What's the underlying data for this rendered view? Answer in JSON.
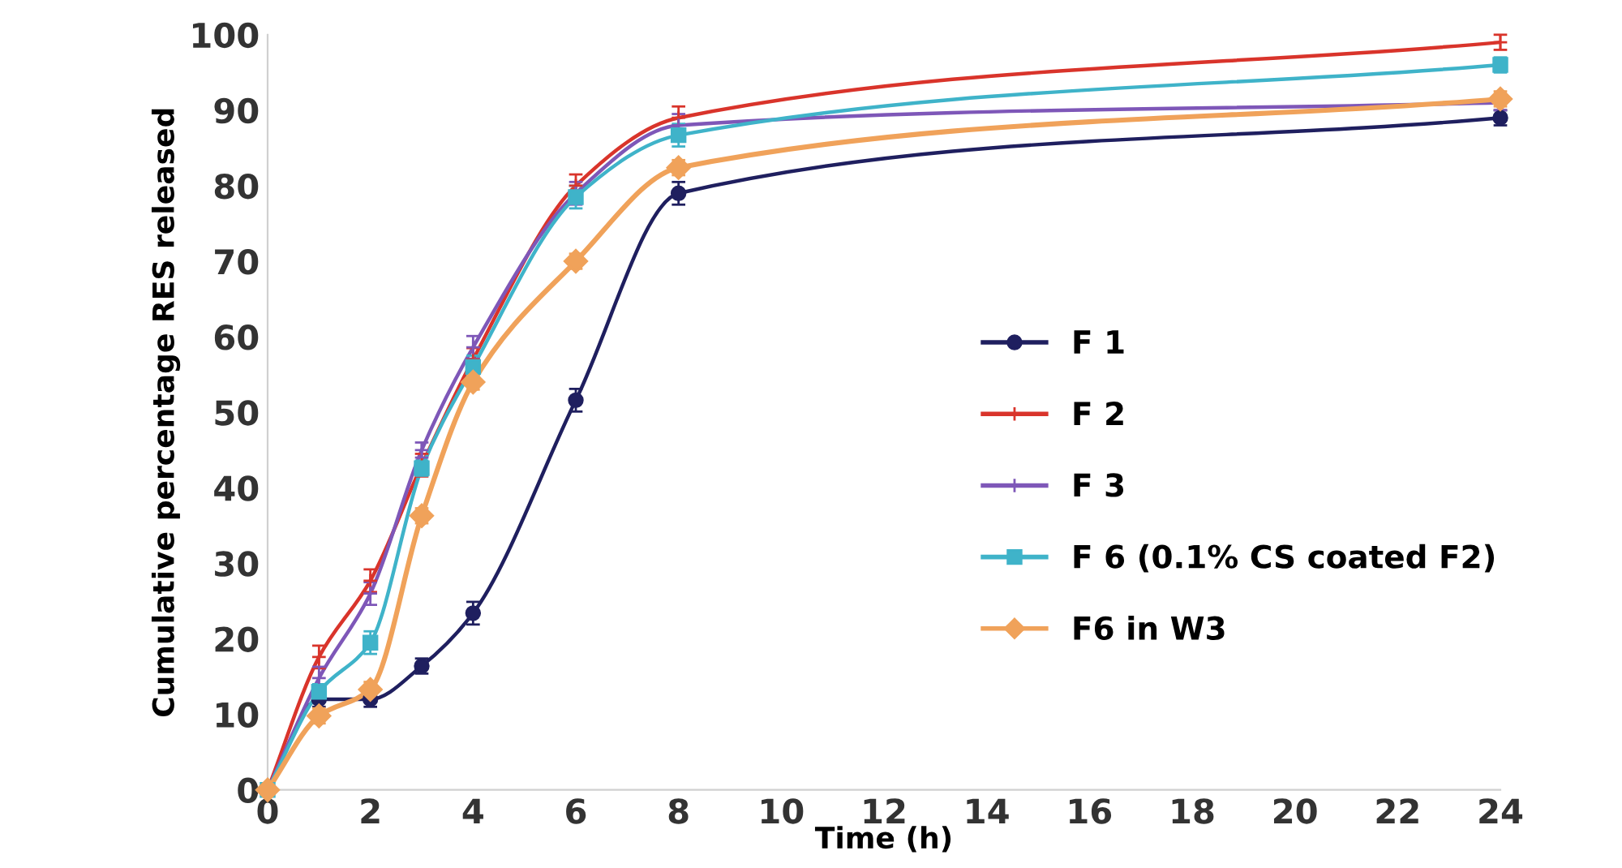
{
  "chart_data": {
    "type": "line",
    "xlabel": "Time (h)",
    "ylabel": "Cumulative percentage RES released",
    "x": [
      0,
      1,
      2,
      3,
      4,
      6,
      8,
      24
    ],
    "xlim": [
      0,
      24
    ],
    "xticks": [
      0,
      2,
      4,
      6,
      8,
      10,
      12,
      14,
      16,
      18,
      20,
      22,
      24
    ],
    "ylim": [
      0,
      100
    ],
    "yticks": [
      0,
      10,
      20,
      30,
      40,
      50,
      60,
      70,
      80,
      90,
      100
    ],
    "grid": false,
    "legend": "right",
    "line_style": "solid",
    "series": [
      {
        "name": "F 1",
        "color": "#1f1f5f",
        "marker": "circle",
        "values": [
          0,
          12,
          12,
          16.4,
          23.4,
          51.6,
          79,
          89
        ],
        "errors": [
          null,
          1,
          1,
          1,
          1.5,
          1.5,
          1.5,
          1
        ]
      },
      {
        "name": "F 2",
        "color": "#d9342b",
        "marker": "cross",
        "values": [
          0,
          17.6,
          27.7,
          43,
          57,
          80,
          89,
          99
        ],
        "errors": [
          null,
          1.5,
          1.5,
          1.5,
          1.5,
          1.5,
          1.5,
          1
        ]
      },
      {
        "name": "F 3",
        "color": "#7e57b8",
        "marker": "cross",
        "values": [
          0,
          14.8,
          26,
          45,
          58.6,
          79,
          88,
          91
        ],
        "errors": [
          null,
          1.5,
          1.5,
          1,
          1.5,
          1.5,
          1.5,
          1
        ]
      },
      {
        "name": "F 6 (0.1% CS coated F2)",
        "color": "#3fb3c9",
        "marker": "square",
        "values": [
          0,
          13,
          19.5,
          42.6,
          56,
          78.5,
          86.7,
          96
        ],
        "errors": [
          null,
          1,
          1.5,
          1,
          1.5,
          1.5,
          1.5,
          1
        ]
      },
      {
        "name": "F6 in W3",
        "color": "#f0a25a",
        "marker": "diamond",
        "values": [
          0,
          9.8,
          13.3,
          36.3,
          54,
          70,
          82.4,
          91.5
        ],
        "errors": [
          null,
          1,
          1,
          1,
          1,
          1,
          1,
          1
        ]
      }
    ]
  }
}
